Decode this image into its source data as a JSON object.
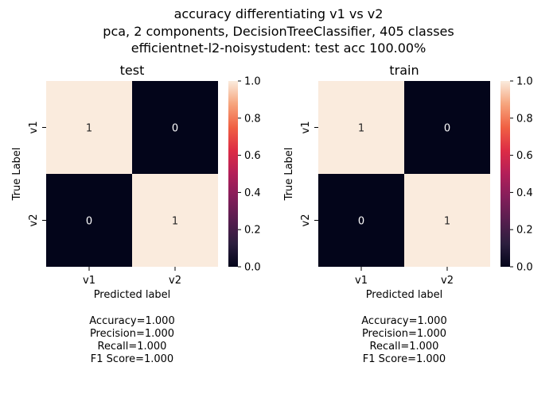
{
  "figure": {
    "title_lines": [
      "accuracy differentiating v1 vs v2",
      "pca, 2 components, DecisionTreeClassifier, 405 classes",
      "efficientnet-l2-noisystudent: test acc 100.00%"
    ]
  },
  "chart_data": [
    {
      "type": "heatmap",
      "title": "test",
      "xlabel": "Predicted label",
      "ylabel": "True Label",
      "x_categories": [
        "v1",
        "v2"
      ],
      "y_categories": [
        "v1",
        "v2"
      ],
      "values": [
        [
          1,
          0
        ],
        [
          0,
          1
        ]
      ],
      "colorbar": {
        "range": [
          0.0,
          1.0
        ],
        "ticks": [
          "0.0",
          "0.2",
          "0.4",
          "0.6",
          "0.8",
          "1.0"
        ]
      },
      "metrics": [
        "Accuracy=1.000",
        "Precision=1.000",
        "Recall=1.000",
        "F1 Score=1.000"
      ]
    },
    {
      "type": "heatmap",
      "title": "train",
      "xlabel": "Predicted label",
      "ylabel": "True Label",
      "x_categories": [
        "v1",
        "v2"
      ],
      "y_categories": [
        "v1",
        "v2"
      ],
      "values": [
        [
          1,
          0
        ],
        [
          0,
          1
        ]
      ],
      "colorbar": {
        "range": [
          0.0,
          1.0
        ],
        "ticks": [
          "0.0",
          "0.2",
          "0.4",
          "0.6",
          "0.8",
          "1.0"
        ]
      },
      "metrics": [
        "Accuracy=1.000",
        "Precision=1.000",
        "Recall=1.000",
        "F1 Score=1.000"
      ]
    }
  ],
  "colors": {
    "high": "#faebdd",
    "low": "#03051a",
    "text_on_high": "#262626",
    "text_on_low": "#ffffff"
  }
}
